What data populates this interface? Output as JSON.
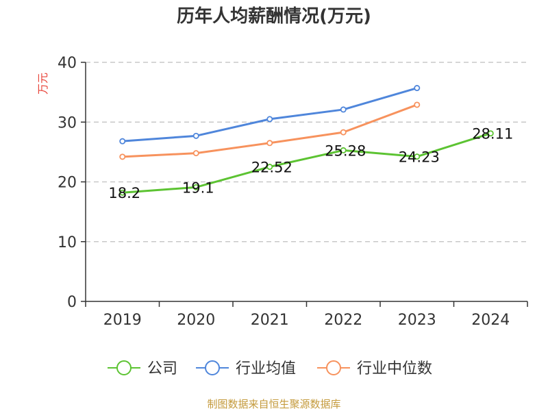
{
  "colors": {
    "company": "#5cc332",
    "industry_avg": "#4f86db",
    "industry_median": "#f7925d",
    "ylabel": "#e8443a",
    "source": "#c49a3c",
    "grid": "#c8c8c8",
    "axis": "#333333"
  },
  "legend_icon": "circle-line-marker",
  "source": "制图数据来自恒生聚源数据库",
  "chart_data": {
    "type": "line",
    "title": "历年人均薪酬情况(万元)",
    "xlabel": "",
    "ylabel": "万元",
    "categories": [
      "2019",
      "2020",
      "2021",
      "2022",
      "2023",
      "2024"
    ],
    "ylim": [
      0,
      40
    ],
    "yticks": [
      0,
      10,
      20,
      30,
      40
    ],
    "grid": true,
    "legend_position": "bottom",
    "series": [
      {
        "name": "公司",
        "color_key": "company",
        "values": [
          18.2,
          19.1,
          22.52,
          25.28,
          24.23,
          28.11
        ],
        "labels": [
          "18.2",
          "19.1",
          "22.52",
          "25.28",
          "24.23",
          "28.11"
        ]
      },
      {
        "name": "行业均值",
        "color_key": "industry_avg",
        "values": [
          26.8,
          27.7,
          30.5,
          32.1,
          35.7,
          null
        ]
      },
      {
        "name": "行业中位数",
        "color_key": "industry_median",
        "values": [
          24.2,
          24.8,
          26.5,
          28.3,
          32.9,
          null
        ]
      }
    ]
  }
}
